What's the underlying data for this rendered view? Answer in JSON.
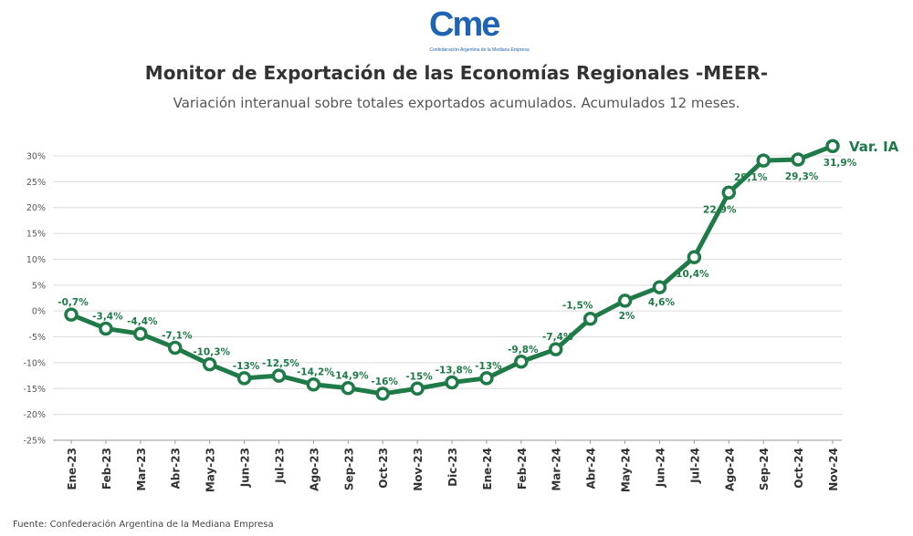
{
  "logo": {
    "text": "Cme",
    "subtitle": "Confederación Argentina de la Mediana Empresa"
  },
  "header": {
    "title": "Monitor de Exportación de las Economías Regionales -MEER-",
    "subtitle": "Variación interanual sobre totales exportados acumulados. Acumulados 12 meses."
  },
  "source": "Fuente: Confederación Argentina de la Mediana Empresa",
  "colors": {
    "series": "#1e7a46",
    "grid": "#dcdcdc",
    "axis_text": "#555555"
  },
  "chart_data": {
    "type": "line",
    "title": "Monitor de Exportación de las Economías Regionales -MEER-",
    "subtitle": "Variación interanual sobre totales exportados acumulados. Acumulados 12 meses.",
    "xlabel": "",
    "ylabel": "",
    "ylim": [
      -25,
      30
    ],
    "yticks": [
      30,
      25,
      20,
      15,
      10,
      5,
      0,
      -5,
      -10,
      -15,
      -20,
      -25
    ],
    "ytick_labels": [
      "30%",
      "25%",
      "20%",
      "15%",
      "10%",
      "5%",
      "0%",
      "-5%",
      "-10%",
      "-15%",
      "-20%",
      "-25%"
    ],
    "grid": true,
    "categories": [
      "Ene-23",
      "Feb-23",
      "Mar-23",
      "Abr-23",
      "May-23",
      "Jun-23",
      "Jul-23",
      "Ago-23",
      "Sep-23",
      "Oct-23",
      "Nov-23",
      "Dic-23",
      "Ene-24",
      "Feb-24",
      "Mar-24",
      "Abr-24",
      "May-24",
      "Jun-24",
      "Jul-24",
      "Ago-24",
      "Sep-24",
      "Oct-24",
      "Nov-24"
    ],
    "series": [
      {
        "name": "Var. IA",
        "values": [
          -0.7,
          -3.4,
          -4.4,
          -7.1,
          -10.3,
          -13,
          -12.5,
          -14.2,
          -14.9,
          -16,
          -15,
          -13.8,
          -13,
          -9.8,
          -7.4,
          -1.5,
          2,
          4.6,
          10.4,
          22.9,
          29.1,
          29.3,
          31.9
        ],
        "labels": [
          "-0,7%",
          "-3,4%",
          "-4,4%",
          "-7,1%",
          "-10,3%",
          "-13%",
          "-12,5%",
          "-14,2%",
          "-14,9%",
          "-16%",
          "-15%",
          "-13,8%",
          "-13%",
          "-9,8%",
          "-7,4%",
          "-1,5%",
          "2%",
          "4,6%",
          "10,4%",
          "22,9%",
          "29,1%",
          "29,3%",
          "31,9%"
        ]
      }
    ],
    "legend": "end-of-line label"
  }
}
